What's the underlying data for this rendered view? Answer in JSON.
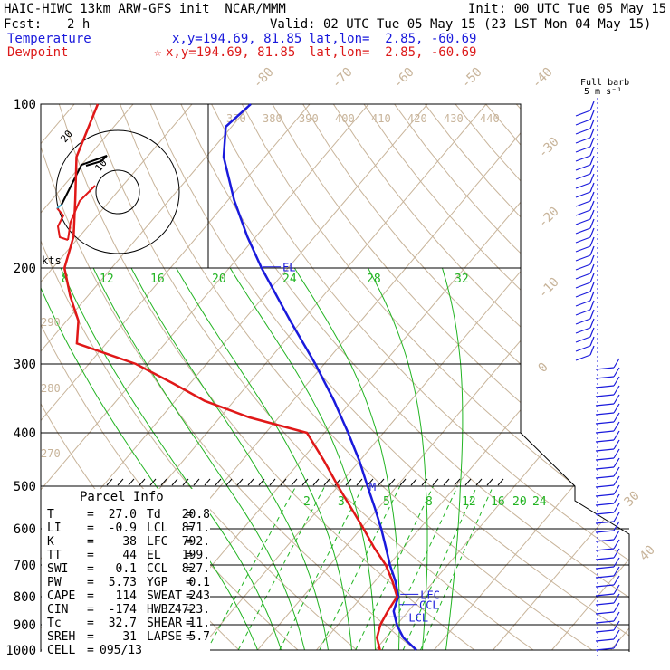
{
  "header": {
    "left1": "HAIC-HIWC 13km ARW-GFS init  NCAR/MMM",
    "right1": "Init: 00 UTC Tue 05 May 15",
    "fcst_label": "Fcst:",
    "fcst_value": "2 h",
    "valid": "Valid: 02 UTC Tue 05 May 15 (23 LST Mon 04 May 15)",
    "temperature_label": "Temperature",
    "temperature_xy": "x,y=194.69, 81.85",
    "temperature_latlon": "lat,lon=  2.85, -60.69",
    "dewpoint_label": "Dewpoint",
    "dewpoint_marker": "☆",
    "dewpoint_xy": "x,y=194.69, 81.85",
    "dewpoint_latlon": "lat,lon=  2.85, -60.69"
  },
  "colors": {
    "temperature": "#1a1adc",
    "dewpoint": "#e01818",
    "mixing_ratio": "#22b422",
    "adiabat": "#c8b49a",
    "hodograph_low": "#e01818",
    "hodograph_mid": "#40a0c0",
    "hodograph_high": "#000000"
  },
  "chart_data": {
    "type": "line",
    "title": "",
    "xlabel": "",
    "ylabel": "",
    "pressure_levels": [
      "100",
      "200",
      "300",
      "400",
      "500",
      "600",
      "700",
      "800",
      "900",
      "1000"
    ],
    "dry_adiabat_labels": [
      "370",
      "380",
      "390",
      "400",
      "410",
      "420",
      "430",
      "440",
      "290",
      "280",
      "270"
    ],
    "isotherm_labels": [
      "-80",
      "-70",
      "-60",
      "-50",
      "-40",
      "-30",
      "-20",
      "-10",
      "0",
      "30",
      "40"
    ],
    "mixing_ratio_labels_upper": [
      "8",
      "12",
      "16",
      "20",
      "24",
      "28",
      "32"
    ],
    "mixing_ratio_labels_lower": [
      "2",
      "3",
      "5",
      "8",
      "12",
      "16",
      "20",
      "24"
    ],
    "series": [
      {
        "name": "Temperature",
        "points": [
          {
            "p": 1000,
            "t": 27.0
          },
          {
            "p": 950,
            "t": 23.0
          },
          {
            "p": 925,
            "t": 21.5
          },
          {
            "p": 900,
            "t": 20.0
          },
          {
            "p": 850,
            "t": 17.5
          },
          {
            "p": 800,
            "t": 16.2
          },
          {
            "p": 750,
            "t": 13.5
          },
          {
            "p": 700,
            "t": 10.2
          },
          {
            "p": 650,
            "t": 7.0
          },
          {
            "p": 600,
            "t": 3.5
          },
          {
            "p": 550,
            "t": -0.5
          },
          {
            "p": 500,
            "t": -5.0
          },
          {
            "p": 450,
            "t": -10.0
          },
          {
            "p": 400,
            "t": -16.0
          },
          {
            "p": 350,
            "t": -23.0
          },
          {
            "p": 300,
            "t": -31.5
          },
          {
            "p": 250,
            "t": -42.0
          },
          {
            "p": 200,
            "t": -54.5
          },
          {
            "p": 175,
            "t": -61.5
          },
          {
            "p": 150,
            "t": -69.0
          },
          {
            "p": 125,
            "t": -77.0
          },
          {
            "p": 110,
            "t": -81.0
          },
          {
            "p": 100,
            "t": -80.0
          }
        ]
      },
      {
        "name": "Dewpoint",
        "points": [
          {
            "p": 1000,
            "t": 20.8
          },
          {
            "p": 950,
            "t": 18.5
          },
          {
            "p": 900,
            "t": 17.2
          },
          {
            "p": 850,
            "t": 16.5
          },
          {
            "p": 800,
            "t": 16.0
          },
          {
            "p": 750,
            "t": 13.0
          },
          {
            "p": 700,
            "t": 9.5
          },
          {
            "p": 650,
            "t": 5.0
          },
          {
            "p": 600,
            "t": 0.5
          },
          {
            "p": 550,
            "t": -4.5
          },
          {
            "p": 500,
            "t": -10.0
          },
          {
            "p": 450,
            "t": -16.0
          },
          {
            "p": 400,
            "t": -23.0
          },
          {
            "p": 375,
            "t": -35.0
          },
          {
            "p": 350,
            "t": -45.0
          },
          {
            "p": 325,
            "t": -53.0
          },
          {
            "p": 300,
            "t": -62.0
          },
          {
            "p": 275,
            "t": -75.0
          },
          {
            "p": 250,
            "t": -78.0
          },
          {
            "p": 225,
            "t": -83.0
          },
          {
            "p": 200,
            "t": -88.0
          },
          {
            "p": 175,
            "t": -91.0
          },
          {
            "p": 150,
            "t": -96.0
          },
          {
            "p": 125,
            "t": -102.0
          },
          {
            "p": 100,
            "t": -106.0
          }
        ]
      }
    ],
    "annotations": [
      {
        "label": "EL",
        "p": 199
      },
      {
        "label": "M",
        "p": 500
      },
      {
        "label": "LFC",
        "p": 792
      },
      {
        "label": "CCL",
        "p": 827
      },
      {
        "label": "LCL",
        "p": 871
      }
    ],
    "hodograph": {
      "label": "kts",
      "ring_labels": [
        "20",
        "10"
      ]
    },
    "wind_key": {
      "line1": "Full barb",
      "line2": "5 m s⁻¹"
    },
    "parcel_info": {
      "title": "Parcel Info",
      "rows": [
        {
          "l1": "T",
          "v1": "27.0",
          "l2": "Td",
          "v2": "20.8"
        },
        {
          "l1": "LI",
          "v1": "-0.9",
          "l2": "LCL",
          "v2": "871."
        },
        {
          "l1": "K",
          "v1": "38",
          "l2": "LFC",
          "v2": "792."
        },
        {
          "l1": "TT",
          "v1": "44",
          "l2": "EL",
          "v2": "199."
        },
        {
          "l1": "SWI",
          "v1": "0.1",
          "l2": "CCL",
          "v2": "827."
        },
        {
          "l1": "PW",
          "v1": "5.73",
          "l2": "YGP",
          "v2": "0.1"
        },
        {
          "l1": "CAPE",
          "v1": "114",
          "l2": "SWEAT",
          "v2": "243"
        },
        {
          "l1": "CIN",
          "v1": "-174",
          "l2": "HWBZ",
          "v2": "4723."
        },
        {
          "l1": "Tc",
          "v1": "32.7",
          "l2": "SHEAR",
          "v2": "11."
        },
        {
          "l1": "SREH",
          "v1": "31",
          "l2": "LAPSE",
          "v2": "5.7"
        }
      ],
      "cell_label": "CELL",
      "cell_value": "095/13"
    }
  }
}
